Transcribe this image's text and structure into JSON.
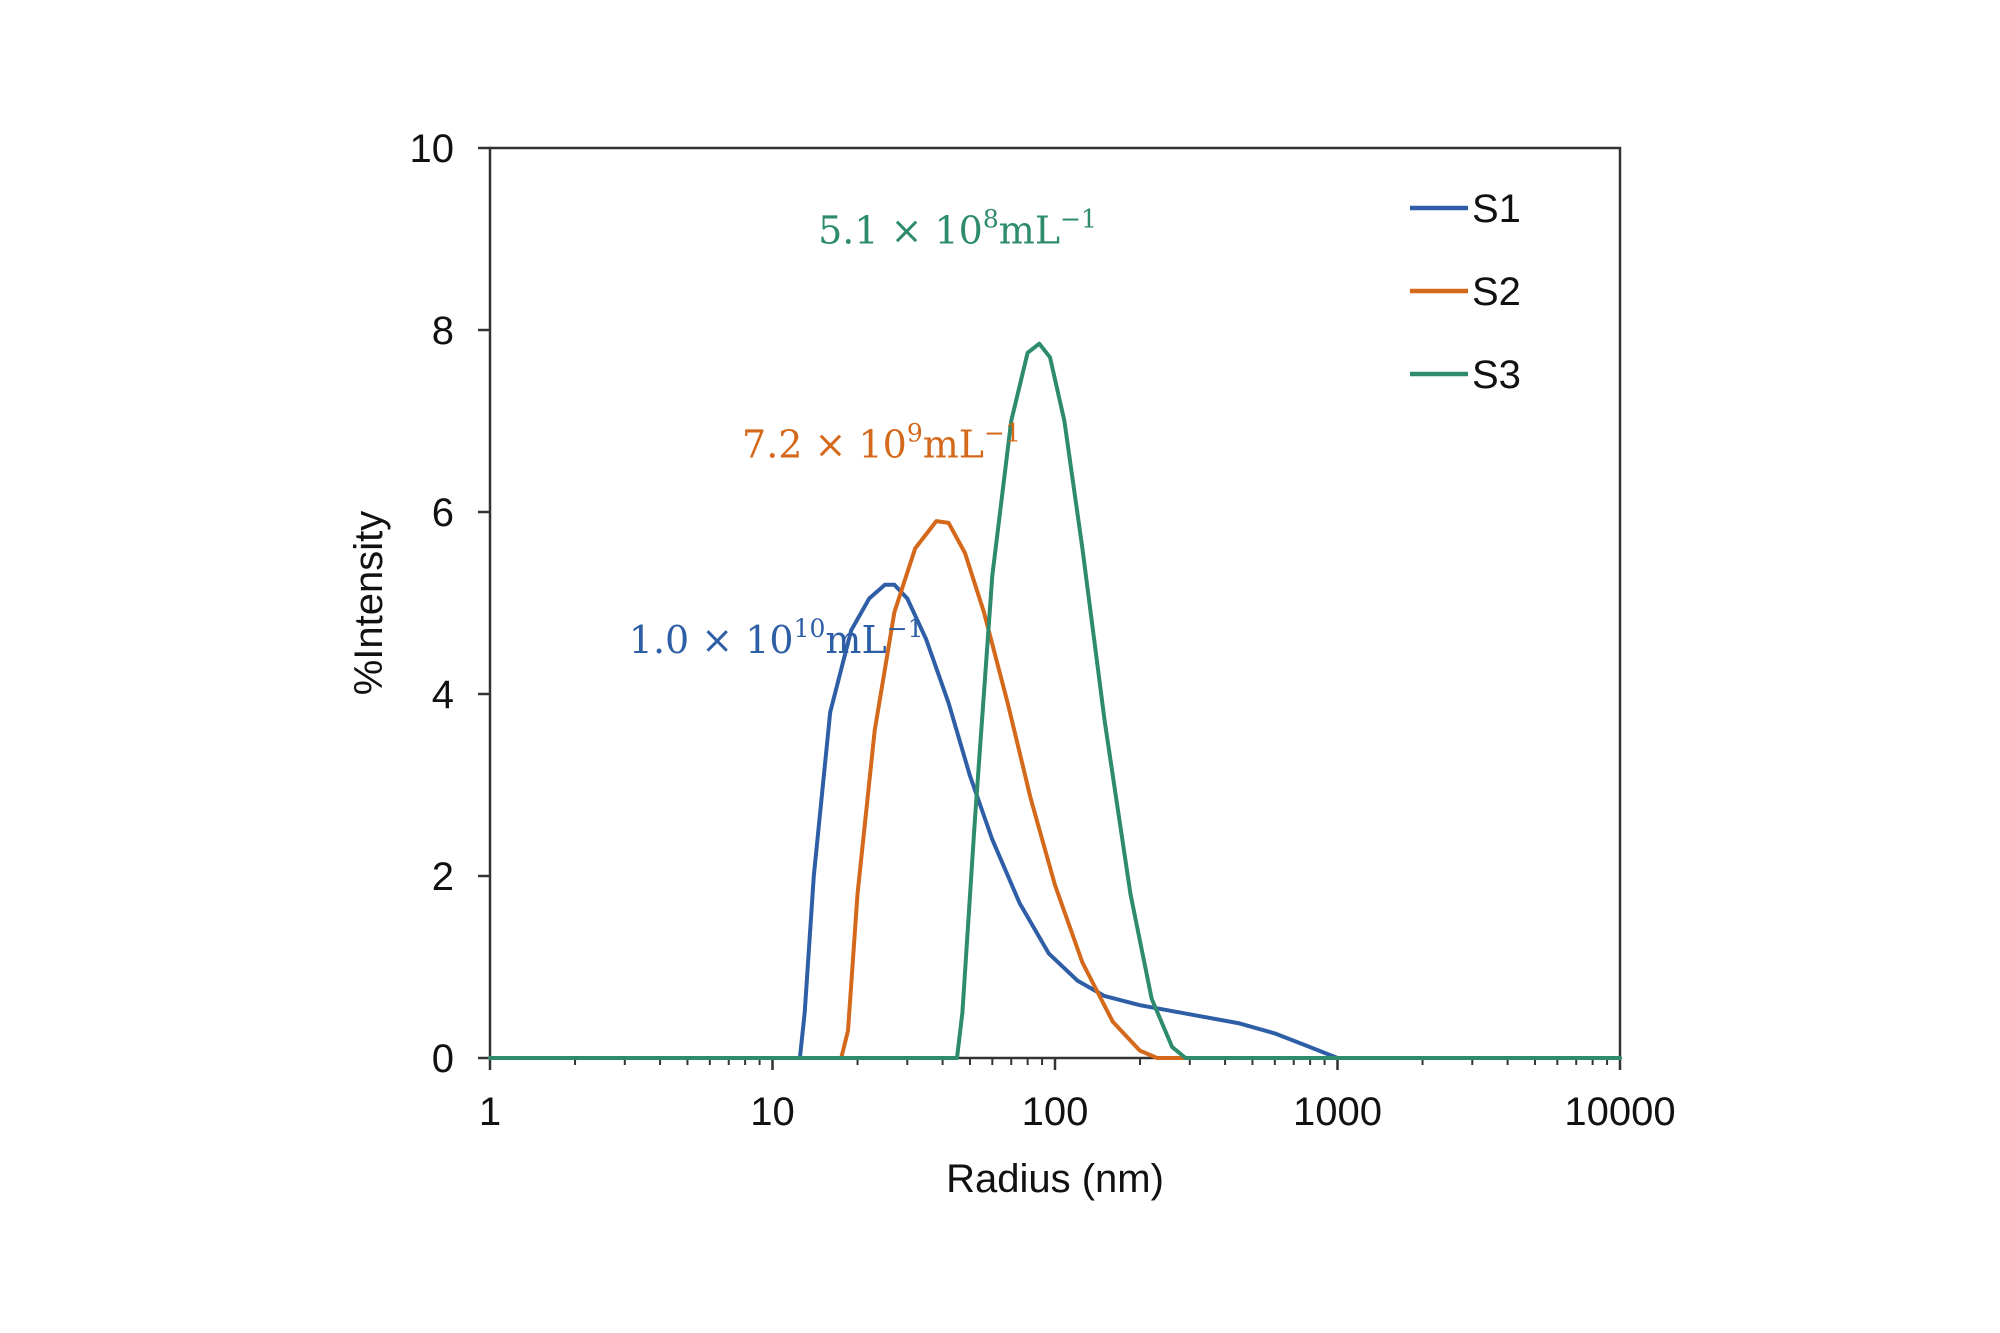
{
  "chart_data": {
    "type": "line",
    "title": "",
    "xlabel": "Radius (nm)",
    "ylabel": "%Intensity",
    "xscale": "log",
    "xlim": [
      1,
      10000
    ],
    "ylim": [
      0,
      10
    ],
    "x_ticks": [
      1,
      10,
      100,
      1000,
      10000
    ],
    "x_tick_labels": [
      "1",
      "10",
      "100",
      "1000",
      "10000"
    ],
    "y_ticks": [
      0,
      2,
      4,
      6,
      8,
      10
    ],
    "y_tick_labels": [
      "0",
      "2",
      "4",
      "6",
      "8",
      "10"
    ],
    "grid": false,
    "legend_position": "top-right",
    "series": [
      {
        "name": "S1",
        "color": "#2e5fa6",
        "points": [
          [
            1,
            0
          ],
          [
            12.5,
            0
          ],
          [
            13,
            0.5
          ],
          [
            14,
            2.0
          ],
          [
            16,
            3.8
          ],
          [
            19,
            4.7
          ],
          [
            22,
            5.05
          ],
          [
            25,
            5.2
          ],
          [
            27,
            5.2
          ],
          [
            30,
            5.05
          ],
          [
            35,
            4.6
          ],
          [
            42,
            3.9
          ],
          [
            50,
            3.1
          ],
          [
            60,
            2.4
          ],
          [
            75,
            1.7
          ],
          [
            95,
            1.15
          ],
          [
            120,
            0.85
          ],
          [
            150,
            0.68
          ],
          [
            200,
            0.58
          ],
          [
            300,
            0.48
          ],
          [
            450,
            0.38
          ],
          [
            600,
            0.27
          ],
          [
            800,
            0.12
          ],
          [
            1000,
            0
          ],
          [
            10000,
            0
          ]
        ]
      },
      {
        "name": "S2",
        "color": "#d4691c",
        "points": [
          [
            1,
            0
          ],
          [
            17.5,
            0
          ],
          [
            18.5,
            0.3
          ],
          [
            20,
            1.8
          ],
          [
            23,
            3.6
          ],
          [
            27,
            4.9
          ],
          [
            32,
            5.6
          ],
          [
            38,
            5.9
          ],
          [
            42,
            5.88
          ],
          [
            48,
            5.55
          ],
          [
            56,
            4.9
          ],
          [
            68,
            3.9
          ],
          [
            82,
            2.85
          ],
          [
            100,
            1.9
          ],
          [
            125,
            1.05
          ],
          [
            160,
            0.4
          ],
          [
            200,
            0.08
          ],
          [
            230,
            0
          ],
          [
            10000,
            0
          ]
        ]
      },
      {
        "name": "S3",
        "color": "#2e8b6e",
        "points": [
          [
            1,
            0
          ],
          [
            45,
            0
          ],
          [
            47,
            0.5
          ],
          [
            52,
            2.6
          ],
          [
            60,
            5.3
          ],
          [
            70,
            7.0
          ],
          [
            80,
            7.75
          ],
          [
            88,
            7.85
          ],
          [
            96,
            7.7
          ],
          [
            108,
            7.0
          ],
          [
            125,
            5.6
          ],
          [
            150,
            3.7
          ],
          [
            185,
            1.8
          ],
          [
            220,
            0.65
          ],
          [
            260,
            0.12
          ],
          [
            290,
            0
          ],
          [
            10000,
            0
          ]
        ]
      }
    ],
    "annotations": [
      {
        "base": "5.1 × 10",
        "sup": "8",
        "tail": "mL",
        "tail_sup": "−1",
        "color": "#2e8b6e",
        "at": [
          14.5,
          8.95
        ]
      },
      {
        "base": "7.2 × 10",
        "sup": "9",
        "tail": "mL",
        "tail_sup": "−1",
        "color": "#d4691c",
        "at": [
          7.8,
          6.6
        ]
      },
      {
        "base": "1.0 × 10",
        "sup": "10",
        "tail": "mL",
        "tail_sup": "−1",
        "color": "#2e5fa6",
        "at": [
          3.1,
          4.45
        ]
      }
    ]
  }
}
